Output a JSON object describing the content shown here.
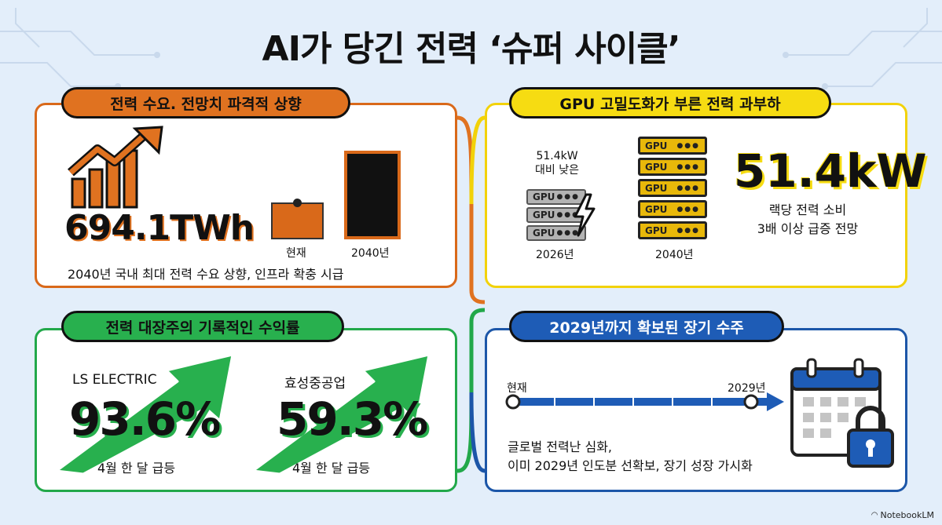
{
  "title": "AI가 당긴 전력 ‘슈퍼 사이클’",
  "demand": {
    "heading": "전력 수요. 전망치 파격적 상향",
    "value": "694.1TWh",
    "bar_now_label": "현재",
    "bar_2040_label": "2040년",
    "caption": "2040년 국내 최대 전력 수요 상향, 인프라 확충 시급"
  },
  "gpu": {
    "heading": "GPU 고밀도화가 부른 전력 과부하",
    "compare_line1": "51.4kW",
    "compare_line2": "대비 낮은",
    "rack_label": "GPU",
    "year_old": "2026년",
    "year_new": "2040년",
    "big_value": "51.4kW",
    "desc_line1": "랙당 전력 소비",
    "desc_line2": "3배 이상 급증 전망"
  },
  "stocks": {
    "heading": "전력 대장주의 기록적인 수익률",
    "items": [
      {
        "name": "LS ELECTRIC",
        "value": "93.6%",
        "note": "4월 한 달 급등"
      },
      {
        "name": "효성중공업",
        "value": "59.3%",
        "note": "4월 한 달 급등"
      }
    ]
  },
  "orders": {
    "heading": "2029년까지 확보된 장기 수주",
    "start_label": "현재",
    "end_label": "2029년",
    "desc_line1": "글로벌 전력난 심화,",
    "desc_line2": "이미 2029년 인도분 선확보, 장기 성장 가시화"
  },
  "brand": "NotebookLM",
  "colors": {
    "orange": "#e07220",
    "yellow": "#f6dc12",
    "green": "#28b04e",
    "blue": "#1e5cb6"
  }
}
